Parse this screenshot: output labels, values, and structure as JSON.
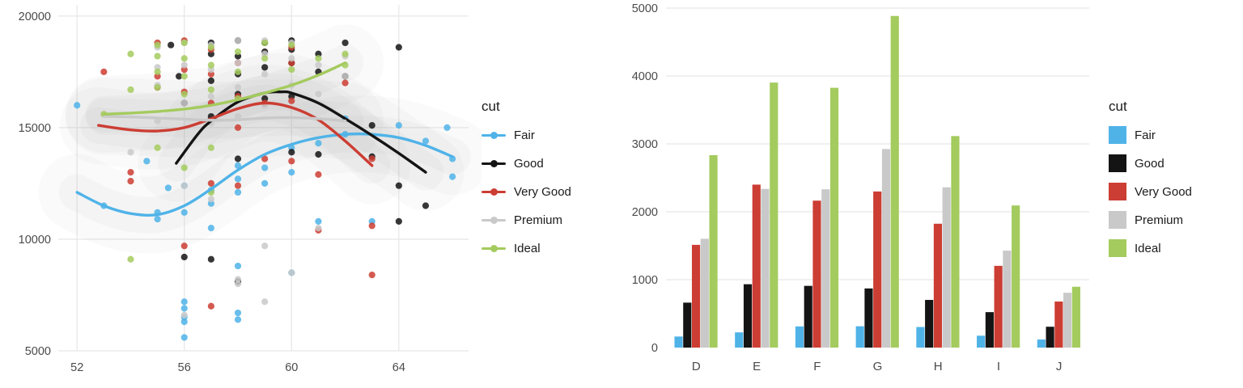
{
  "legend": {
    "title": "cut",
    "items": [
      {
        "label": "Fair",
        "color": "#4FB3E8"
      },
      {
        "label": "Good",
        "color": "#141414"
      },
      {
        "label": "Very Good",
        "color": "#CC3D33"
      },
      {
        "label": "Premium",
        "color": "#C9C9C9"
      },
      {
        "label": "Ideal",
        "color": "#A4CB5E"
      }
    ]
  },
  "chart_data": [
    {
      "type": "scatter",
      "title": "",
      "xlabel": "",
      "ylabel": "",
      "xlim": [
        51.3,
        66.6
      ],
      "ylim": [
        5000,
        20500
      ],
      "xticks": [
        52,
        56,
        60,
        64
      ],
      "yticks": [
        5000,
        10000,
        15000,
        20000
      ],
      "grid": "both",
      "legend_title": "cut",
      "legend_position": "right",
      "series": [
        {
          "name": "Fair",
          "color": "#4FB3E8",
          "points": [
            [
              52,
              16000
            ],
            [
              53,
              11500
            ],
            [
              54.6,
              13500
            ],
            [
              55,
              11200
            ],
            [
              55,
              10900
            ],
            [
              55.4,
              12300
            ],
            [
              56,
              12400
            ],
            [
              56,
              11200
            ],
            [
              56,
              7200
            ],
            [
              56,
              6900
            ],
            [
              56,
              6500
            ],
            [
              56,
              6300
            ],
            [
              56,
              5600
            ],
            [
              57,
              12200
            ],
            [
              57,
              11600
            ],
            [
              57,
              10500
            ],
            [
              58,
              13300
            ],
            [
              58,
              12700
            ],
            [
              58,
              12100
            ],
            [
              58,
              8800
            ],
            [
              58,
              6700
            ],
            [
              58,
              6400
            ],
            [
              59,
              13200
            ],
            [
              59,
              12500
            ],
            [
              60,
              14100
            ],
            [
              60,
              13000
            ],
            [
              60,
              8500
            ],
            [
              61,
              14300
            ],
            [
              61,
              10800
            ],
            [
              62,
              15400
            ],
            [
              62,
              14700
            ],
            [
              63,
              10800
            ],
            [
              64,
              15100
            ],
            [
              65,
              14400
            ],
            [
              65.8,
              15000
            ],
            [
              66,
              13600
            ],
            [
              66,
              12800
            ]
          ],
          "smooth": [
            [
              52,
              12100
            ],
            [
              53,
              11500
            ],
            [
              54,
              11150
            ],
            [
              55,
              11100
            ],
            [
              56,
              11500
            ],
            [
              57,
              12250
            ],
            [
              58,
              13100
            ],
            [
              59,
              13800
            ],
            [
              60,
              14250
            ],
            [
              61,
              14550
            ],
            [
              62,
              14700
            ],
            [
              63,
              14700
            ],
            [
              64,
              14550
            ],
            [
              65,
              14200
            ],
            [
              66,
              13700
            ]
          ]
        },
        {
          "name": "Good",
          "color": "#141414",
          "points": [
            [
              55.5,
              18700
            ],
            [
              55.8,
              17300
            ],
            [
              56,
              16100
            ],
            [
              56,
              9200
            ],
            [
              57,
              18800
            ],
            [
              57,
              18300
            ],
            [
              57,
              17100
            ],
            [
              57,
              15500
            ],
            [
              57,
              9100
            ],
            [
              58,
              18900
            ],
            [
              58,
              18200
            ],
            [
              58,
              17400
            ],
            [
              58,
              16500
            ],
            [
              58,
              13600
            ],
            [
              58,
              8100
            ],
            [
              59,
              18800
            ],
            [
              59,
              18400
            ],
            [
              59,
              17700
            ],
            [
              59,
              16300
            ],
            [
              60,
              18900
            ],
            [
              60,
              18500
            ],
            [
              60,
              17900
            ],
            [
              60,
              16400
            ],
            [
              60,
              13900
            ],
            [
              61,
              18300
            ],
            [
              61,
              17500
            ],
            [
              61,
              13800
            ],
            [
              62,
              18800
            ],
            [
              62,
              17300
            ],
            [
              63,
              15100
            ],
            [
              63,
              13700
            ],
            [
              64,
              18600
            ],
            [
              64,
              12400
            ],
            [
              64,
              10800
            ],
            [
              65,
              11500
            ]
          ],
          "smooth": [
            [
              55.7,
              13400
            ],
            [
              56.5,
              14700
            ],
            [
              57,
              15300
            ],
            [
              58,
              16150
            ],
            [
              59,
              16550
            ],
            [
              59.6,
              16600
            ],
            [
              60,
              16550
            ],
            [
              61,
              16100
            ],
            [
              62,
              15400
            ],
            [
              63,
              14650
            ],
            [
              64,
              13850
            ],
            [
              65,
              13000
            ]
          ]
        },
        {
          "name": "Very Good",
          "color": "#CC3D33",
          "points": [
            [
              53,
              17500
            ],
            [
              54,
              13000
            ],
            [
              54,
              12600
            ],
            [
              55,
              18800
            ],
            [
              55,
              17300
            ],
            [
              55,
              16800
            ],
            [
              56,
              18900
            ],
            [
              56,
              17600
            ],
            [
              56,
              16600
            ],
            [
              56,
              9700
            ],
            [
              57,
              18500
            ],
            [
              57,
              17400
            ],
            [
              57,
              16100
            ],
            [
              57,
              12500
            ],
            [
              57,
              7000
            ],
            [
              58,
              17900
            ],
            [
              58,
              16400
            ],
            [
              58,
              15000
            ],
            [
              58,
              12400
            ],
            [
              59,
              16100
            ],
            [
              59,
              13600
            ],
            [
              60,
              18600
            ],
            [
              60,
              17900
            ],
            [
              60,
              16200
            ],
            [
              60,
              13500
            ],
            [
              61,
              12900
            ],
            [
              61,
              10400
            ],
            [
              62,
              17000
            ],
            [
              63,
              13600
            ],
            [
              63,
              10600
            ],
            [
              63,
              8400
            ]
          ],
          "smooth": [
            [
              52.8,
              15100
            ],
            [
              54,
              14900
            ],
            [
              55,
              14850
            ],
            [
              56,
              15000
            ],
            [
              57,
              15400
            ],
            [
              58,
              15850
            ],
            [
              59,
              16100
            ],
            [
              60,
              15900
            ],
            [
              61,
              15350
            ],
            [
              62,
              14400
            ],
            [
              63,
              13300
            ]
          ]
        },
        {
          "name": "Premium",
          "color": "#C9C9C9",
          "points": [
            [
              54,
              13900
            ],
            [
              55,
              18600
            ],
            [
              55,
              17700
            ],
            [
              55,
              16900
            ],
            [
              55,
              15300
            ],
            [
              56,
              18800
            ],
            [
              56,
              17800
            ],
            [
              56,
              16100
            ],
            [
              56,
              12400
            ],
            [
              56,
              6600
            ],
            [
              57,
              18700
            ],
            [
              57,
              17600
            ],
            [
              57,
              16400
            ],
            [
              57,
              15200
            ],
            [
              57,
              11800
            ],
            [
              58,
              18900
            ],
            [
              58,
              17900
            ],
            [
              58,
              16800
            ],
            [
              58,
              15500
            ],
            [
              58,
              8200
            ],
            [
              58,
              8000
            ],
            [
              59,
              18900
            ],
            [
              59,
              18300
            ],
            [
              59,
              17400
            ],
            [
              59,
              16000
            ],
            [
              59,
              9700
            ],
            [
              59,
              7200
            ],
            [
              60,
              18800
            ],
            [
              60,
              18100
            ],
            [
              60,
              16900
            ],
            [
              60,
              8500
            ],
            [
              61,
              17800
            ],
            [
              61,
              16500
            ],
            [
              61,
              10500
            ],
            [
              62,
              18200
            ],
            [
              62,
              17300
            ]
          ],
          "smooth": [
            [
              53,
              15500
            ],
            [
              54,
              15480
            ],
            [
              55,
              15430
            ],
            [
              56,
              15380
            ],
            [
              57,
              15330
            ],
            [
              58,
              15350
            ],
            [
              59,
              15430
            ],
            [
              60,
              15450
            ],
            [
              61,
              15400
            ],
            [
              62,
              15300
            ]
          ]
        },
        {
          "name": "Ideal",
          "color": "#A4CB5E",
          "points": [
            [
              53,
              15600
            ],
            [
              54,
              18300
            ],
            [
              54,
              16700
            ],
            [
              54,
              9100
            ],
            [
              55,
              18700
            ],
            [
              55,
              18200
            ],
            [
              55,
              17500
            ],
            [
              55,
              16800
            ],
            [
              55,
              14100
            ],
            [
              56,
              18800
            ],
            [
              56,
              18100
            ],
            [
              56,
              17300
            ],
            [
              56,
              16500
            ],
            [
              56,
              13200
            ],
            [
              57,
              18600
            ],
            [
              57,
              17800
            ],
            [
              57,
              16700
            ],
            [
              57,
              14100
            ],
            [
              57,
              12100
            ],
            [
              58,
              18400
            ],
            [
              58,
              17500
            ],
            [
              58,
              16300
            ],
            [
              59,
              18800
            ],
            [
              59,
              18100
            ],
            [
              60,
              18700
            ],
            [
              60,
              17600
            ],
            [
              61,
              18100
            ],
            [
              62,
              18300
            ],
            [
              62,
              17800
            ]
          ],
          "smooth": [
            [
              53,
              15600
            ],
            [
              54,
              15650
            ],
            [
              55,
              15720
            ],
            [
              56,
              15830
            ],
            [
              57,
              16000
            ],
            [
              58,
              16250
            ],
            [
              59,
              16550
            ],
            [
              60,
              16900
            ],
            [
              61,
              17350
            ],
            [
              62,
              17900
            ]
          ]
        }
      ]
    },
    {
      "type": "bar",
      "title": "",
      "xlabel": "",
      "ylabel": "",
      "categories": [
        "D",
        "E",
        "F",
        "G",
        "H",
        "I",
        "J"
      ],
      "ylim": [
        0,
        5000
      ],
      "yticks": [
        0,
        1000,
        2000,
        3000,
        4000,
        5000
      ],
      "grid": "horizontal",
      "legend_title": "cut",
      "legend_position": "right",
      "series": [
        {
          "name": "Fair",
          "color": "#4FB3E8",
          "values": [
            163,
            224,
            312,
            314,
            303,
            175,
            119
          ]
        },
        {
          "name": "Good",
          "color": "#141414",
          "values": [
            662,
            933,
            909,
            871,
            702,
            522,
            307
          ]
        },
        {
          "name": "Very Good",
          "color": "#CC3D33",
          "values": [
            1513,
            2400,
            2164,
            2299,
            1824,
            1204,
            678
          ]
        },
        {
          "name": "Premium",
          "color": "#C9C9C9",
          "values": [
            1603,
            2337,
            2331,
            2924,
            2360,
            1428,
            808
          ]
        },
        {
          "name": "Ideal",
          "color": "#A4CB5E",
          "values": [
            2834,
            3903,
            3826,
            4884,
            3115,
            2093,
            896
          ]
        }
      ]
    }
  ]
}
